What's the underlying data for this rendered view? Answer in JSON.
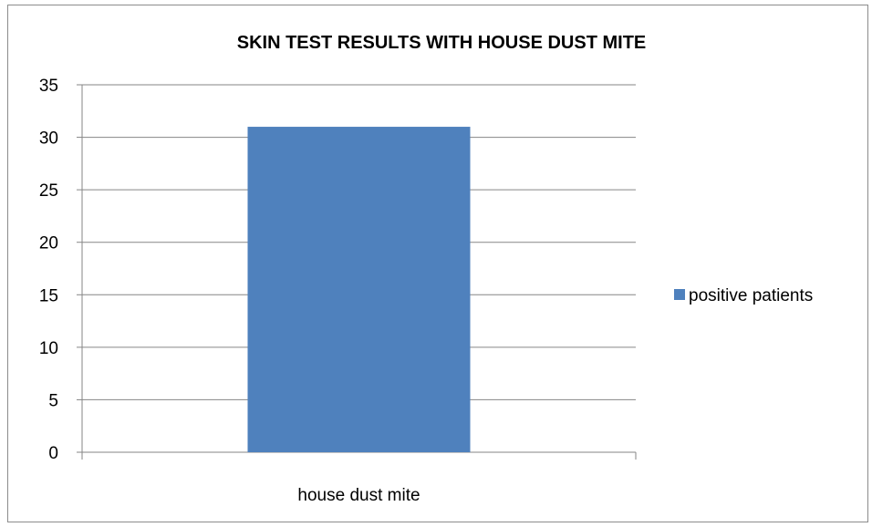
{
  "chart_data": {
    "type": "bar",
    "title": "SKIN TEST RESULTS WITH HOUSE DUST MITE",
    "categories": [
      "house dust mite"
    ],
    "series": [
      {
        "name": "positive patients",
        "values": [
          31
        ],
        "color": "#4f81bd"
      }
    ],
    "xlabel": "",
    "ylabel": "",
    "ylim": [
      0,
      35
    ],
    "yticks": [
      0,
      5,
      10,
      15,
      20,
      25,
      30,
      35
    ],
    "grid": true,
    "legend_position": "right"
  }
}
